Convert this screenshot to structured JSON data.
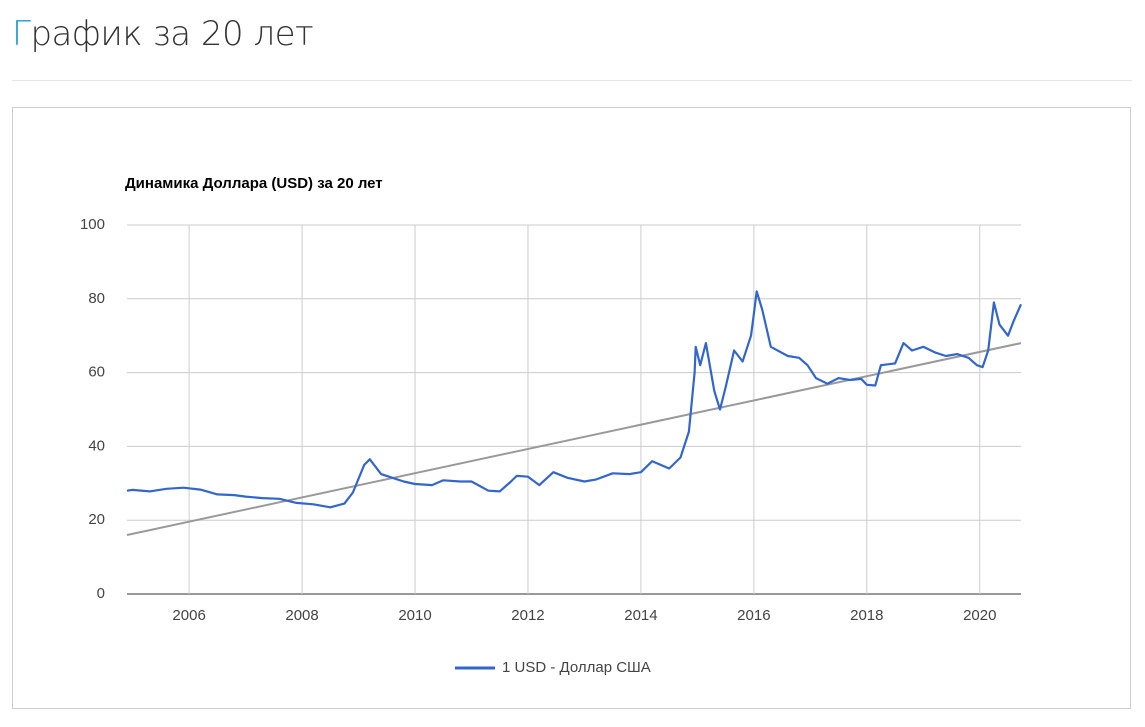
{
  "page_title": "График за 20 лет",
  "chart_data": {
    "type": "line",
    "title": "Динамика Доллара (USD) за 20 лет",
    "x": [
      2004.9,
      2005.0,
      2005.3,
      2005.6,
      2005.9,
      2006.2,
      2006.5,
      2006.8,
      2007.0,
      2007.3,
      2007.6,
      2007.9,
      2008.2,
      2008.5,
      2008.75,
      2008.9,
      2009.1,
      2009.2,
      2009.4,
      2009.6,
      2009.8,
      2010.0,
      2010.3,
      2010.5,
      2010.8,
      2011.0,
      2011.3,
      2011.5,
      2011.7,
      2011.8,
      2012.0,
      2012.2,
      2012.45,
      2012.7,
      2013.0,
      2013.2,
      2013.5,
      2013.8,
      2014.0,
      2014.2,
      2014.5,
      2014.7,
      2014.85,
      2014.95,
      2014.97,
      2015.05,
      2015.15,
      2015.3,
      2015.4,
      2015.5,
      2015.65,
      2015.8,
      2015.95,
      2016.0,
      2016.05,
      2016.15,
      2016.3,
      2016.6,
      2016.8,
      2016.95,
      2017.1,
      2017.3,
      2017.5,
      2017.7,
      2017.9,
      2018.0,
      2018.15,
      2018.25,
      2018.5,
      2018.65,
      2018.8,
      2019.0,
      2019.2,
      2019.4,
      2019.6,
      2019.8,
      2019.95,
      2020.05,
      2020.15,
      2020.25,
      2020.35,
      2020.5,
      2020.6,
      2020.73
    ],
    "series": [
      {
        "name": "1 USD - Доллар США",
        "color": "#3366cc",
        "values": [
          28,
          28.2,
          27.8,
          28.5,
          28.8,
          28.3,
          27.0,
          26.8,
          26.4,
          26.0,
          25.8,
          24.7,
          24.3,
          23.5,
          24.5,
          27.5,
          35.0,
          36.5,
          32.5,
          31.5,
          30.5,
          29.8,
          29.5,
          30.8,
          30.5,
          30.5,
          28.0,
          27.8,
          30.5,
          32.0,
          31.8,
          29.5,
          33.0,
          31.5,
          30.5,
          31.0,
          32.7,
          32.5,
          33.0,
          36.0,
          34.0,
          37.0,
          44.0,
          60.0,
          67.0,
          62.0,
          68.0,
          55.0,
          50.0,
          56.0,
          66.0,
          63.0,
          70.0,
          76.0,
          82.0,
          77.0,
          67.0,
          64.5,
          64.0,
          62.0,
          58.5,
          57.0,
          58.5,
          58.0,
          58.3,
          56.7,
          56.5,
          62.0,
          62.5,
          68.0,
          66.0,
          67.0,
          65.5,
          64.5,
          65.0,
          64.0,
          62.0,
          61.5,
          66.0,
          79.0,
          73.0,
          70.0,
          74.0,
          78.5
        ]
      }
    ],
    "trendline": {
      "x": [
        2004.9,
        2020.73
      ],
      "values": [
        16,
        68
      ],
      "color": "#999999"
    },
    "xlim": [
      2004.9,
      2020.73
    ],
    "ylim": [
      0,
      100
    ],
    "xticks": [
      2006,
      2008,
      2010,
      2012,
      2014,
      2016,
      2018,
      2020
    ],
    "yticks": [
      0,
      20,
      40,
      60,
      80,
      100
    ],
    "grid": true,
    "legend": "bottom"
  }
}
